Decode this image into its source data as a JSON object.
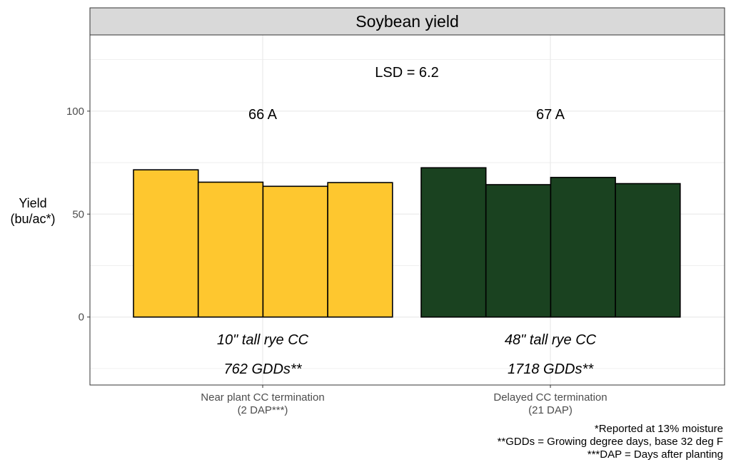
{
  "chart_data": {
    "type": "bar",
    "title": "Soybean yield",
    "ylabel": [
      "Yield",
      "(bu/ac*)"
    ],
    "ylim": [
      -33,
      137
    ],
    "yticks": [
      0,
      50,
      100
    ],
    "grid": true,
    "groups": [
      {
        "category": [
          "Near plant CC termination",
          "(2 DAP***)"
        ],
        "values": [
          71.5,
          65.5,
          63.5,
          65.3
        ],
        "mean_label": "66 A",
        "note1": "10\" tall rye CC",
        "note2": "762 GDDs**",
        "color": "#fec72f"
      },
      {
        "category": [
          "Delayed CC termination",
          "(21 DAP)"
        ],
        "values": [
          72.5,
          64.3,
          67.8,
          64.8
        ],
        "mean_label": "67 A",
        "note1": "48\" tall rye CC",
        "note2": "1718 GDDs**",
        "color": "#1a4220"
      }
    ],
    "annotation": "LSD = 6.2",
    "footnotes": [
      "*Reported at 13% moisture",
      "**GDDs = Growing degree days, base 32 deg F",
      "***DAP = Days after planting"
    ]
  },
  "colors": {
    "strip_bg": "#d9d9d9",
    "grid": "#ebebeb",
    "panel_border": "#333333",
    "bar_outline": "#000000"
  }
}
